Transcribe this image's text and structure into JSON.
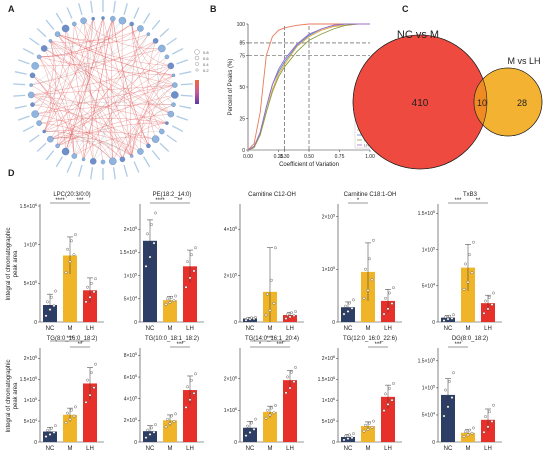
{
  "panel_labels": {
    "a": "A",
    "b": "B",
    "c": "C",
    "d": "D"
  },
  "colors": {
    "NC": "#2c3e66",
    "M": "#f0b429",
    "LH": "#e8302a",
    "pink": "#f6b9cf",
    "venn_left": "#ee4a3f",
    "venn_right": "#f4b233",
    "venn_overlap": "#f08a23"
  },
  "chart_data": [
    {
      "panel": "A",
      "type": "network",
      "description_visible": "circular correlation network of metabolites, red and gray edges",
      "legend": {
        "size_levels": [
          "0.8",
          "0.6",
          "0.4",
          "0.2"
        ]
      }
    },
    {
      "panel": "B",
      "type": "line",
      "xlabel": "Coefficient of Variation",
      "ylabel": "Percent of Peaks (%)",
      "xticks": [
        "0.00",
        "0.25",
        "0.30",
        "0.50",
        "0.75",
        "1.00"
      ],
      "yticks": [
        "0",
        "25",
        "50",
        "75",
        "85",
        "100"
      ],
      "xlim": [
        0,
        1
      ],
      "ylim": [
        0,
        100
      ],
      "reference_x": [
        0.3,
        0.5
      ],
      "reference_y": [
        75,
        85
      ],
      "legend_title": "Group",
      "legend_items": [
        "Q1",
        "Q2",
        "NC",
        "M",
        "LH"
      ],
      "series": [
        {
          "name": "Q1",
          "color": "#e97a5a",
          "x": [
            0,
            0.05,
            0.1,
            0.15,
            0.2,
            0.25,
            0.3,
            0.4,
            0.5,
            0.6,
            0.7,
            0.8,
            0.9,
            1.0
          ],
          "y": [
            0,
            5,
            30,
            75,
            90,
            95,
            97,
            99,
            100,
            100,
            100,
            100,
            100,
            100
          ]
        },
        {
          "name": "Q2",
          "color": "#e8a23c",
          "x": [
            0,
            0.05,
            0.1,
            0.15,
            0.2,
            0.25,
            0.3,
            0.4,
            0.5,
            0.6,
            0.7,
            0.8,
            0.9,
            1.0
          ],
          "y": [
            0,
            2,
            12,
            30,
            48,
            60,
            68,
            82,
            90,
            95,
            98,
            99,
            100,
            100
          ]
        },
        {
          "name": "NC",
          "color": "#4a90c8",
          "x": [
            0,
            0.05,
            0.1,
            0.15,
            0.2,
            0.25,
            0.3,
            0.4,
            0.5,
            0.6,
            0.7,
            0.8,
            0.9,
            1.0
          ],
          "y": [
            0,
            2,
            14,
            34,
            52,
            62,
            70,
            83,
            91,
            96,
            99,
            100,
            100,
            100
          ]
        },
        {
          "name": "M",
          "color": "#8aa040",
          "x": [
            0,
            0.05,
            0.1,
            0.15,
            0.2,
            0.25,
            0.3,
            0.4,
            0.5,
            0.6,
            0.7,
            0.8,
            0.9,
            1.0
          ],
          "y": [
            0,
            2,
            12,
            30,
            46,
            58,
            66,
            78,
            87,
            92,
            96,
            99,
            100,
            100
          ]
        },
        {
          "name": "LH",
          "color": "#9a6cc8",
          "x": [
            0,
            0.05,
            0.1,
            0.15,
            0.2,
            0.25,
            0.3,
            0.4,
            0.5,
            0.6,
            0.7,
            0.8,
            0.9,
            1.0
          ],
          "y": [
            0,
            3,
            14,
            34,
            52,
            64,
            72,
            84,
            92,
            96,
            99,
            100,
            100,
            100
          ]
        }
      ]
    },
    {
      "panel": "C",
      "type": "venn",
      "sets": [
        {
          "name": "NC vs M",
          "only": 410
        },
        {
          "name": "M vs LH",
          "only": 28
        }
      ],
      "overlap": 10
    },
    {
      "panel": "D",
      "type": "bar",
      "ylabel": "Integral of chromatographic\npeak area",
      "categories": [
        "NC",
        "M",
        "LH"
      ],
      "plots": [
        {
          "title": "LPC(20:3/0:0)",
          "ymax": 15,
          "exp": "6",
          "yticks": [
            {
              "v": 0,
              "m": "0",
              "e": ""
            },
            {
              "v": 5,
              "m": "5×10",
              "e": "5"
            },
            {
              "v": 10,
              "m": "1×10",
              "e": "6"
            },
            {
              "v": 15,
              "m": "1.5×10",
              "e": "6"
            }
          ],
          "means": [
            2.2,
            8.6,
            4.1
          ],
          "sd": [
            1.4,
            2.4,
            1.6
          ],
          "points": [
            [
              0.8,
              1.6,
              2.1,
              2.6,
              3.2,
              4.0
            ],
            [
              6.4,
              7.8,
              8.7,
              9.4,
              10.5,
              11.3
            ],
            [
              2.6,
              3.2,
              3.9,
              4.5,
              5.0,
              5.6
            ]
          ],
          "sig": [
            {
              "a": 0,
              "b": 1,
              "label": "****"
            },
            {
              "a": 1,
              "b": 2,
              "label": "***"
            }
          ]
        },
        {
          "title": "PE(18:2_14:0)",
          "ymax": 2.5,
          "exp": "5",
          "yticks": [
            {
              "v": 0,
              "m": "0",
              "e": ""
            },
            {
              "v": 0.5,
              "m": "5×10",
              "e": "4"
            },
            {
              "v": 1,
              "m": "1×10",
              "e": "5"
            },
            {
              "v": 1.5,
              "m": "1.5×10",
              "e": "5"
            },
            {
              "v": 2,
              "m": "2×10",
              "e": "5"
            }
          ],
          "means": [
            1.75,
            0.47,
            1.2
          ],
          "sd": [
            0.45,
            0.08,
            0.35
          ],
          "points": [
            [
              1.2,
              1.4,
              1.7,
              1.9,
              2.1,
              2.35
            ],
            [
              0.38,
              0.42,
              0.46,
              0.5,
              0.53,
              0.56
            ],
            [
              0.75,
              0.95,
              1.1,
              1.3,
              1.45,
              1.6
            ]
          ],
          "sig": [
            {
              "a": 0,
              "b": 1,
              "label": "****"
            },
            {
              "a": 1,
              "b": 2,
              "label": "**"
            }
          ]
        },
        {
          "title": "Carnitine C12-OH",
          "ymax": 5,
          "exp": "5",
          "yticks": [
            {
              "v": 0,
              "m": "0",
              "e": ""
            },
            {
              "v": 2,
              "m": "2×10",
              "e": "5"
            },
            {
              "v": 4,
              "m": "4×10",
              "e": "5"
            }
          ],
          "means": [
            0.15,
            1.3,
            0.3
          ],
          "sd": [
            0.05,
            1.9,
            0.12
          ],
          "points": [
            [
              0.08,
              0.12,
              0.14,
              0.16,
              0.18,
              0.2
            ],
            [
              0.3,
              0.5,
              0.8,
              1.2,
              1.8,
              3.2
            ],
            [
              0.15,
              0.22,
              0.28,
              0.32,
              0.4,
              0.45
            ]
          ],
          "sig": []
        },
        {
          "title": "Carnitine C18:1-OH",
          "ymax": 2.2,
          "exp": "5",
          "yticks": [
            {
              "v": 0,
              "m": "0",
              "e": ""
            },
            {
              "v": 1,
              "m": "1×10",
              "e": "5"
            },
            {
              "v": 2,
              "m": "2×10",
              "e": "5"
            }
          ],
          "means": [
            0.28,
            0.95,
            0.4
          ],
          "sd": [
            0.1,
            0.55,
            0.22
          ],
          "points": [
            [
              0.15,
              0.2,
              0.26,
              0.3,
              0.36,
              0.42
            ],
            [
              0.45,
              0.6,
              0.8,
              1.0,
              1.2,
              1.55
            ],
            [
              0.15,
              0.25,
              0.35,
              0.45,
              0.55,
              0.65
            ]
          ],
          "sig": [
            {
              "a": 0,
              "b": 1,
              "label": "*"
            }
          ]
        },
        {
          "title": "TxB3",
          "ymax": 16,
          "exp": "5",
          "yticks": [
            {
              "v": 0,
              "m": "0",
              "e": ""
            },
            {
              "v": 5,
              "m": "5×10",
              "e": "4"
            },
            {
              "v": 10,
              "m": "1×10",
              "e": "5"
            },
            {
              "v": 15,
              "m": "1.5×10",
              "e": "5"
            }
          ],
          "means": [
            0.6,
            7.5,
            2.6
          ],
          "sd": [
            0.3,
            3.2,
            1.1
          ],
          "points": [
            [
              0.2,
              0.4,
              0.5,
              0.7,
              0.8,
              1.0
            ],
            [
              4.5,
              5.5,
              6.8,
              8.0,
              9.3,
              11.0
            ],
            [
              1.2,
              1.8,
              2.4,
              2.9,
              3.4,
              4.0
            ]
          ],
          "sig": [
            {
              "a": 0,
              "b": 1,
              "label": "***"
            },
            {
              "a": 1,
              "b": 2,
              "label": "**"
            }
          ]
        },
        {
          "title": "TG(8:0_16:0_18:2)",
          "ymax": 22,
          "exp": "5",
          "yticks": [
            {
              "v": 0,
              "m": "0",
              "e": ""
            },
            {
              "v": 5,
              "m": "5×10",
              "e": "4"
            },
            {
              "v": 10,
              "m": "1×10",
              "e": "5"
            },
            {
              "v": 15,
              "m": "1.5×10",
              "e": "5"
            },
            {
              "v": 20,
              "m": "2×10",
              "e": "5"
            }
          ],
          "means": [
            2.5,
            6.5,
            14.0
          ],
          "sd": [
            1.0,
            1.6,
            3.8
          ],
          "points": [
            [
              1.3,
              1.8,
              2.3,
              2.8,
              3.3,
              3.9
            ],
            [
              4.6,
              5.4,
              6.2,
              6.9,
              7.6,
              8.4
            ],
            [
              9.5,
              11.2,
              13.0,
              14.8,
              16.6,
              18.6
            ]
          ],
          "sig": [
            {
              "a": 0,
              "b": 2,
              "label": "***"
            },
            {
              "a": 1,
              "b": 2,
              "label": "**"
            }
          ]
        },
        {
          "title": "TG(10:0_18:1_18:2)",
          "ymax": 8.5,
          "exp": "5",
          "yticks": [
            {
              "v": 0,
              "m": "0",
              "e": ""
            },
            {
              "v": 2,
              "m": "2×10",
              "e": "5"
            },
            {
              "v": 4,
              "m": "4×10",
              "e": "5"
            },
            {
              "v": 6,
              "m": "6×10",
              "e": "5"
            },
            {
              "v": 8,
              "m": "8×10",
              "e": "5"
            }
          ],
          "means": [
            1.0,
            2.0,
            4.8
          ],
          "sd": [
            0.5,
            0.5,
            1.3
          ],
          "points": [
            [
              0.4,
              0.7,
              0.9,
              1.1,
              1.3,
              1.6
            ],
            [
              1.4,
              1.7,
              1.9,
              2.1,
              2.4,
              2.6
            ],
            [
              3.2,
              3.9,
              4.5,
              5.1,
              5.7,
              6.3
            ]
          ],
          "sig": [
            {
              "a": 1,
              "b": 2,
              "label": "***"
            }
          ]
        },
        {
          "title": "TG(14:0_16:1_20:4)",
          "ymax": 2.9,
          "exp": "6",
          "yticks": [
            {
              "v": 0,
              "m": "0",
              "e": ""
            },
            {
              "v": 1,
              "m": "1×10",
              "e": "6"
            },
            {
              "v": 2,
              "m": "2×10",
              "e": "6"
            }
          ],
          "means": [
            0.45,
            0.95,
            1.95
          ],
          "sd": [
            0.2,
            0.18,
            0.3
          ],
          "points": [
            [
              0.2,
              0.3,
              0.4,
              0.5,
              0.6,
              0.72
            ],
            [
              0.75,
              0.85,
              0.92,
              1.0,
              1.07,
              1.15
            ],
            [
              1.55,
              1.7,
              1.9,
              2.05,
              2.2,
              2.35
            ]
          ],
          "sig": [
            {
              "a": 0,
              "b": 1,
              "label": "*"
            },
            {
              "a": 1,
              "b": 2,
              "label": "***"
            },
            {
              "a": 0,
              "b": 2,
              "label": "***"
            }
          ]
        },
        {
          "title": "TG(12:0_16:0_22:6)",
          "ymax": 2.2,
          "exp": "6",
          "yticks": [
            {
              "v": 0,
              "m": "0",
              "e": ""
            },
            {
              "v": 0.5,
              "m": "5×10",
              "e": "5"
            },
            {
              "v": 1,
              "m": "1×10",
              "e": "6"
            },
            {
              "v": 1.5,
              "m": "1.5×10",
              "e": "6"
            },
            {
              "v": 2,
              "m": "2×10",
              "e": "6"
            }
          ],
          "means": [
            0.12,
            0.38,
            1.08
          ],
          "sd": [
            0.06,
            0.1,
            0.28
          ],
          "points": [
            [
              0.05,
              0.08,
              0.1,
              0.14,
              0.17,
              0.2
            ],
            [
              0.26,
              0.3,
              0.35,
              0.4,
              0.45,
              0.5
            ],
            [
              0.75,
              0.9,
              1.0,
              1.15,
              1.28,
              1.4
            ]
          ],
          "sig": [
            {
              "a": 1,
              "b": 2,
              "label": "***"
            }
          ]
        },
        {
          "title": "DG(8:0_18:2)",
          "ymax": 17,
          "exp": "5",
          "yticks": [
            {
              "v": 0,
              "m": "0",
              "e": ""
            },
            {
              "v": 5,
              "m": "5×10",
              "e": "4"
            },
            {
              "v": 10,
              "m": "1×10",
              "e": "5"
            },
            {
              "v": 15,
              "m": "1.5×10",
              "e": "5"
            }
          ],
          "means": [
            8.7,
            1.7,
            4.1
          ],
          "sd": [
            3.0,
            0.6,
            2.0
          ],
          "points": [
            [
              4.8,
              6.5,
              8.2,
              9.6,
              11.2,
              12.8
            ],
            [
              1.0,
              1.3,
              1.6,
              1.9,
              2.2,
              2.6
            ],
            [
              1.8,
              2.8,
              3.8,
              4.7,
              5.6,
              6.8
            ]
          ],
          "sig": [
            {
              "a": 0,
              "b": 1,
              "label": "***"
            }
          ]
        }
      ]
    }
  ]
}
